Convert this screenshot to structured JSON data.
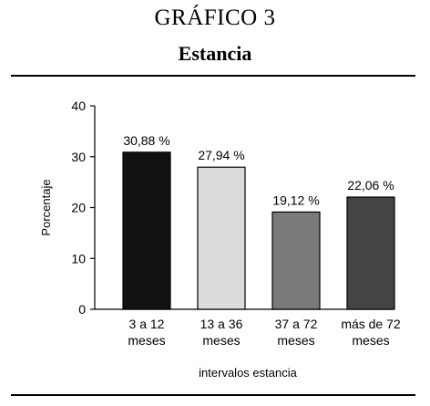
{
  "header": {
    "title": "GRÁFICO 3",
    "subtitle": "Estancia"
  },
  "chart_data": {
    "type": "bar",
    "categories": [
      [
        "3 a 12",
        "meses"
      ],
      [
        "13 a 36",
        "meses"
      ],
      [
        "37 a 72",
        "meses"
      ],
      [
        "más de 72",
        "meses"
      ]
    ],
    "values": [
      30.88,
      27.94,
      19.12,
      22.06
    ],
    "value_labels": [
      "30,88 %",
      "27,94 %",
      "19,12 %",
      "22,06 %"
    ],
    "colors": [
      "#111111",
      "#dcdcdc",
      "#7a7a7a",
      "#444444"
    ],
    "xlabel": "intervalos estancia",
    "ylabel": "Porcentaje",
    "ylim": [
      0,
      40
    ],
    "yticks": [
      0,
      10,
      20,
      30,
      40
    ],
    "grid": false,
    "legend": "none"
  }
}
